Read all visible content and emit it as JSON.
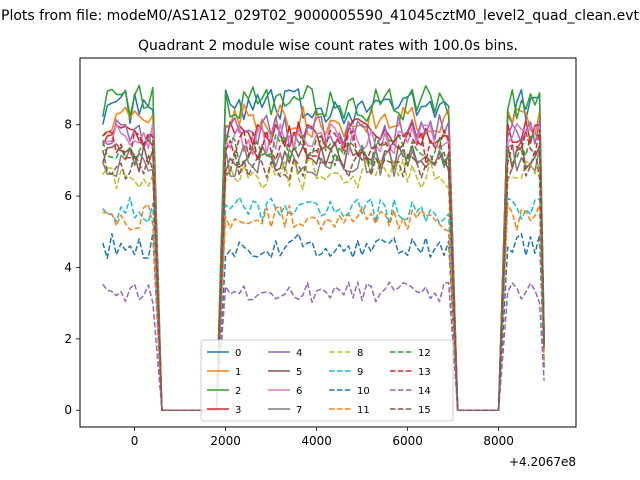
{
  "figure": {
    "suptitle": "Plots from file: modeM0/AS1A12_029T02_9000005590_41045cztM0_level2_quad_clean.evt",
    "title": "Quadrant 2 module wise count rates with 100.0s bins.",
    "offset_label": "+4.2067e8"
  },
  "chart_data": {
    "type": "line",
    "title": "Quadrant 2 module wise count rates with 100.0s bins.",
    "xlabel": "",
    "ylabel": "",
    "x_offset": 420670000,
    "xlim": [
      -1200,
      9700
    ],
    "ylim": [
      -0.47,
      9.87
    ],
    "x_ticks": [
      0,
      2000,
      4000,
      6000,
      8000
    ],
    "x_tick_labels": [
      "0",
      "2000",
      "4000",
      "6000",
      "8000"
    ],
    "y_ticks": [
      0,
      2,
      4,
      6,
      8
    ],
    "y_tick_labels": [
      "0",
      "2",
      "4",
      "6",
      "8"
    ],
    "grid": false,
    "legend_position": "lower-center",
    "segments": [
      {
        "start": -700,
        "end": 400,
        "step": 100
      },
      {
        "start": 2000,
        "end": 6900,
        "step": 100
      },
      {
        "start": 8200,
        "end": 8900,
        "step": 100
      }
    ],
    "gaps": [
      {
        "from_end": 400,
        "to_start": 2000,
        "zero_start": 600,
        "zero_end": 1800
      },
      {
        "from_end": 6900,
        "to_start": 8200,
        "zero_start": 7100,
        "zero_end": 8000
      }
    ],
    "series": [
      {
        "name": "0",
        "color": "#1f77b4",
        "dash": "solid",
        "level": 8.5
      },
      {
        "name": "1",
        "color": "#ff7f0e",
        "dash": "solid",
        "level": 8.1
      },
      {
        "name": "2",
        "color": "#2ca02c",
        "dash": "solid",
        "level": 8.6
      },
      {
        "name": "3",
        "color": "#d62728",
        "dash": "solid",
        "level": 7.7
      },
      {
        "name": "4",
        "color": "#9467bd",
        "dash": "solid",
        "level": 7.8
      },
      {
        "name": "5",
        "color": "#8c564b",
        "dash": "solid",
        "level": 7.1
      },
      {
        "name": "6",
        "color": "#e377c2",
        "dash": "solid",
        "level": 7.6
      },
      {
        "name": "7",
        "color": "#7f7f7f",
        "dash": "solid",
        "level": 7.0
      },
      {
        "name": "8",
        "color": "#bcbd22",
        "dash": "dashed",
        "level": 6.6
      },
      {
        "name": "9",
        "color": "#17becf",
        "dash": "dashed",
        "level": 5.6
      },
      {
        "name": "10",
        "color": "#1f77b4",
        "dash": "dashed",
        "level": 4.6
      },
      {
        "name": "11",
        "color": "#ff7f0e",
        "dash": "dashed",
        "level": 5.4
      },
      {
        "name": "12",
        "color": "#2ca02c",
        "dash": "dashed",
        "level": 7.3
      },
      {
        "name": "13",
        "color": "#d62728",
        "dash": "dashed",
        "level": 7.4
      },
      {
        "name": "14",
        "color": "#9467bd",
        "dash": "dashed",
        "level": 3.3
      },
      {
        "name": "15",
        "color": "#8c564b",
        "dash": "dashed",
        "level": 6.9
      }
    ]
  }
}
